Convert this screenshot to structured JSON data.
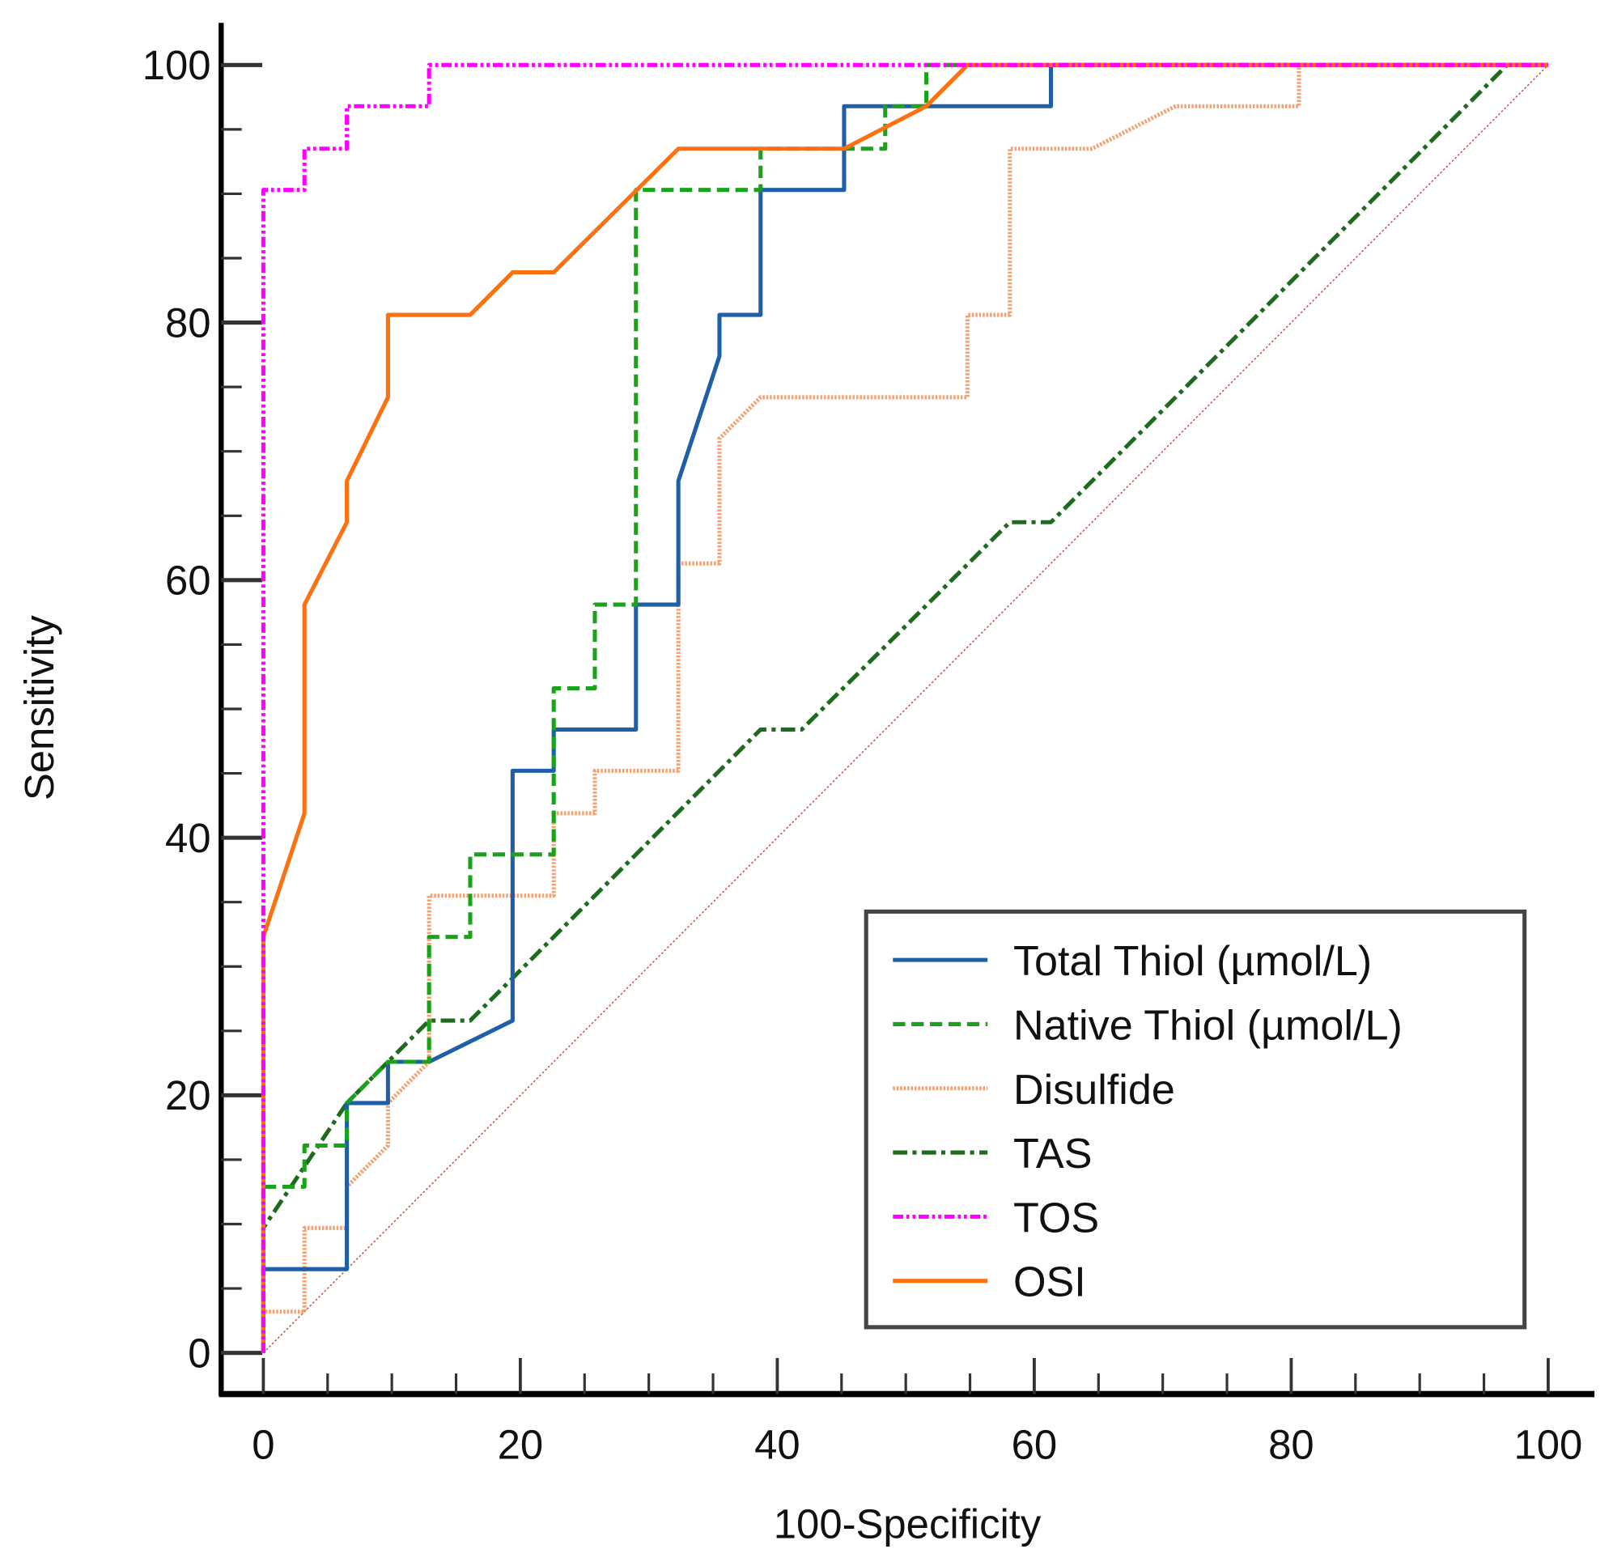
{
  "chart_data": {
    "type": "line",
    "title": "",
    "xlabel": "100-Specificity",
    "ylabel": "Sensitivity",
    "xlim": [
      0,
      100
    ],
    "ylim": [
      0,
      100
    ],
    "x_ticks": [
      "0",
      "20",
      "40",
      "60",
      "80",
      "100"
    ],
    "y_ticks": [
      "0",
      "20",
      "40",
      "60",
      "80",
      "100"
    ],
    "grid": false,
    "legend_position": "bottom-right",
    "reference_line": {
      "points": [
        [
          0,
          0
        ],
        [
          100,
          100
        ]
      ],
      "color": "#c0504d"
    },
    "series": [
      {
        "name": "Total Thiol (µmol/L)",
        "color": "#1f5fa8",
        "style": "solid",
        "points": [
          [
            0,
            0
          ],
          [
            0,
            6.5
          ],
          [
            6.5,
            6.5
          ],
          [
            6.5,
            19.4
          ],
          [
            9.7,
            19.4
          ],
          [
            9.7,
            22.6
          ],
          [
            12.9,
            22.6
          ],
          [
            19.4,
            25.8
          ],
          [
            19.4,
            45.2
          ],
          [
            22.6,
            45.2
          ],
          [
            22.6,
            48.4
          ],
          [
            29,
            48.4
          ],
          [
            29,
            58.1
          ],
          [
            32.3,
            58.1
          ],
          [
            32.3,
            67.7
          ],
          [
            35.5,
            77.4
          ],
          [
            35.5,
            80.6
          ],
          [
            38.7,
            80.6
          ],
          [
            38.7,
            90.3
          ],
          [
            45.2,
            90.3
          ],
          [
            45.2,
            96.8
          ],
          [
            61.3,
            96.8
          ],
          [
            61.3,
            100
          ],
          [
            100,
            100
          ]
        ]
      },
      {
        "name": "Native Thiol (µmol/L)",
        "color": "#1aa31a",
        "style": "dashed",
        "points": [
          [
            0,
            0
          ],
          [
            0,
            12.9
          ],
          [
            3.2,
            12.9
          ],
          [
            3.2,
            16.1
          ],
          [
            6.5,
            16.1
          ],
          [
            6.5,
            19.4
          ],
          [
            9.7,
            22.6
          ],
          [
            12.9,
            22.6
          ],
          [
            12.9,
            32.3
          ],
          [
            16.1,
            32.3
          ],
          [
            16.1,
            38.7
          ],
          [
            22.6,
            38.7
          ],
          [
            22.6,
            51.6
          ],
          [
            25.8,
            51.6
          ],
          [
            25.8,
            58.1
          ],
          [
            29,
            58.1
          ],
          [
            29,
            90.3
          ],
          [
            38.7,
            90.3
          ],
          [
            38.7,
            93.5
          ],
          [
            48.4,
            93.5
          ],
          [
            48.4,
            96.8
          ],
          [
            51.6,
            96.8
          ],
          [
            51.6,
            100
          ],
          [
            100,
            100
          ]
        ]
      },
      {
        "name": "Disulfide",
        "color": "#f4a070",
        "style": "dotted",
        "points": [
          [
            0,
            0
          ],
          [
            0,
            3.2
          ],
          [
            3.2,
            3.2
          ],
          [
            3.2,
            9.7
          ],
          [
            6.5,
            9.7
          ],
          [
            6.5,
            12.9
          ],
          [
            9.7,
            16.1
          ],
          [
            9.7,
            19.4
          ],
          [
            12.9,
            22.6
          ],
          [
            12.9,
            35.5
          ],
          [
            22.6,
            35.5
          ],
          [
            22.6,
            41.9
          ],
          [
            25.8,
            41.9
          ],
          [
            25.8,
            45.2
          ],
          [
            32.3,
            45.2
          ],
          [
            32.3,
            61.3
          ],
          [
            35.5,
            61.3
          ],
          [
            35.5,
            71
          ],
          [
            38.7,
            74.2
          ],
          [
            54.8,
            74.2
          ],
          [
            54.8,
            80.6
          ],
          [
            58.1,
            80.6
          ],
          [
            58.1,
            93.5
          ],
          [
            64.5,
            93.5
          ],
          [
            71,
            96.8
          ],
          [
            80.6,
            96.8
          ],
          [
            80.6,
            100
          ],
          [
            100,
            100
          ]
        ]
      },
      {
        "name": "TAS",
        "color": "#1e6b1e",
        "style": "dashdot",
        "points": [
          [
            0,
            0
          ],
          [
            0,
            9.7
          ],
          [
            6.5,
            19.4
          ],
          [
            9.7,
            22.6
          ],
          [
            12.9,
            25.8
          ],
          [
            16.1,
            25.8
          ],
          [
            38.7,
            48.4
          ],
          [
            41.9,
            48.4
          ],
          [
            58.1,
            64.5
          ],
          [
            61.3,
            64.5
          ],
          [
            96.8,
            100
          ],
          [
            100,
            100
          ]
        ]
      },
      {
        "name": "TOS",
        "color": "#ff00ff",
        "style": "dashdotdot",
        "points": [
          [
            0,
            0
          ],
          [
            0,
            90.3
          ],
          [
            3.2,
            90.3
          ],
          [
            3.2,
            93.5
          ],
          [
            6.5,
            93.5
          ],
          [
            6.5,
            96.8
          ],
          [
            12.9,
            96.8
          ],
          [
            12.9,
            100
          ],
          [
            100,
            100
          ]
        ]
      },
      {
        "name": "OSI",
        "color": "#ff7010",
        "style": "solid",
        "points": [
          [
            0,
            0
          ],
          [
            0,
            32.3
          ],
          [
            3.2,
            41.9
          ],
          [
            3.2,
            58.1
          ],
          [
            6.5,
            64.5
          ],
          [
            6.5,
            67.7
          ],
          [
            9.7,
            74.2
          ],
          [
            9.7,
            80.6
          ],
          [
            16.1,
            80.6
          ],
          [
            19.4,
            83.9
          ],
          [
            22.6,
            83.9
          ],
          [
            32.3,
            93.5
          ],
          [
            45.2,
            93.5
          ],
          [
            51.6,
            96.8
          ],
          [
            54.8,
            100
          ],
          [
            100,
            100
          ]
        ]
      }
    ]
  }
}
